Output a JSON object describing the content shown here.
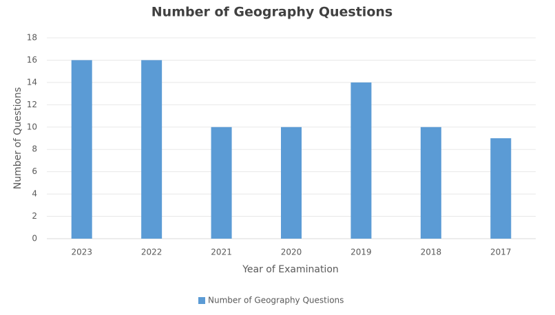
{
  "chart_data": {
    "type": "bar",
    "title": "Number of Geography Questions",
    "x_label": "Year of Examination",
    "y_label": "Number of Questions",
    "categories": [
      "2023",
      "2022",
      "2021",
      "2020",
      "2019",
      "2018",
      "2017"
    ],
    "series": [
      {
        "name": "Number of Geography Questions",
        "color": "#5b9bd5",
        "values": [
          16,
          16,
          10,
          10,
          14,
          10,
          9
        ]
      }
    ],
    "ylim": [
      0,
      18
    ],
    "yticks": [
      0,
      2,
      4,
      6,
      8,
      10,
      12,
      14,
      16,
      18
    ],
    "grid": true,
    "legend": "bottom"
  }
}
